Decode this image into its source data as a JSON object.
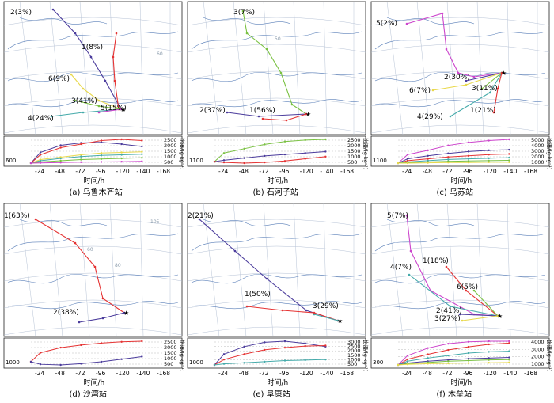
{
  "page": {
    "xlabel": "时间/h",
    "ylabel": "比湿/(g·kg⁻¹)"
  },
  "chart_data": [
    {
      "type": "line",
      "caption": "(a) 乌鲁木齐站",
      "map_labels": [
        "2(3%)",
        "1(8%)",
        "6(9%)",
        "3(41%)",
        "5(15%)",
        "4(24%)"
      ],
      "map_grid_labels": [
        "60"
      ],
      "humidity": {
        "x_ticks": [
          "-24",
          "-48",
          "-72",
          "-96",
          "-120",
          "-140",
          "-168"
        ],
        "y_left": "600",
        "y_right_ticks": [
          "2500",
          "2000",
          "1500",
          "1000",
          "500"
        ],
        "series": [
          {
            "color": "#4b3c9c",
            "values": [
              600,
              1500,
              2100,
              2300,
              2350,
              2200,
              2000
            ]
          },
          {
            "color": "#e53333",
            "values": [
              600,
              1300,
              1900,
              2200,
              2500,
              2600,
              2500
            ]
          },
          {
            "color": "#e8d84a",
            "values": [
              600,
              900,
              1100,
              1300,
              1450,
              1500,
              1550
            ]
          },
          {
            "color": "#44aaaa",
            "values": [
              600,
              800,
              1000,
              1150,
              1250,
              1300,
              1350
            ]
          },
          {
            "color": "#7ac142",
            "values": [
              600,
              700,
              800,
              900,
              950,
              1000,
              1050
            ]
          },
          {
            "color": "#cc44cc",
            "values": [
              600,
              620,
              650,
              680,
              700,
              720,
              750
            ]
          }
        ]
      }
    },
    {
      "type": "line",
      "caption": "(b) 石河子站",
      "map_labels": [
        "3(7%)",
        "2(37%)",
        "1(56%)"
      ],
      "map_grid_labels": [
        "50"
      ],
      "humidity": {
        "x_ticks": [
          "-24",
          "-48",
          "-72",
          "-96",
          "-120",
          "-140",
          "-168"
        ],
        "y_left": "1100",
        "y_right_ticks": [
          "2500",
          "2000",
          "1500",
          "1000",
          "500"
        ],
        "series": [
          {
            "color": "#7ac142",
            "values": [
              1100,
              1700,
              2000,
              2300,
              2500,
              2600,
              2650
            ]
          },
          {
            "color": "#4b3c9c",
            "values": [
              1100,
              1200,
              1350,
              1500,
              1600,
              1700,
              1800
            ]
          },
          {
            "color": "#e53333",
            "values": [
              1100,
              1050,
              1000,
              1050,
              1150,
              1300,
              1450
            ]
          }
        ]
      }
    },
    {
      "type": "line",
      "caption": "(c) 乌苏站",
      "map_labels": [
        "5(2%)",
        "2(30%)",
        "6(7%)",
        "3(11%)",
        "4(29%)",
        "1(21%)"
      ],
      "map_grid_labels": [],
      "humidity": {
        "x_ticks": [
          "-24",
          "-48",
          "-72",
          "-96",
          "-120",
          "-140",
          "-168"
        ],
        "y_left": "1100",
        "y_right_ticks": [
          "5000",
          "4000",
          "3000",
          "2000",
          "1000"
        ],
        "series": [
          {
            "color": "#cc44cc",
            "values": [
              1100,
              2500,
              3200,
              4000,
              4500,
              4800,
              5000
            ]
          },
          {
            "color": "#4b3c9c",
            "values": [
              1100,
              1800,
              2300,
              2700,
              3000,
              3200,
              3300
            ]
          },
          {
            "color": "#e53333",
            "values": [
              1100,
              1500,
              1800,
              2100,
              2300,
              2500,
              2600
            ]
          },
          {
            "color": "#44aaaa",
            "values": [
              1100,
              1300,
              1500,
              1700,
              1800,
              1900,
              2000
            ]
          },
          {
            "color": "#7ac142",
            "values": [
              1100,
              1200,
              1300,
              1400,
              1450,
              1500,
              1550
            ]
          },
          {
            "color": "#e8d84a",
            "values": [
              1100,
              1100,
              1150,
              1200,
              1200,
              1250,
              1250
            ]
          }
        ]
      }
    },
    {
      "type": "line",
      "caption": "(d) 沙湾站",
      "map_labels": [
        "1(63%)",
        "2(38%)"
      ],
      "map_grid_labels": [
        "105",
        "80",
        "60"
      ],
      "humidity": {
        "x_ticks": [
          "-24",
          "-48",
          "-72",
          "-96",
          "-120",
          "-140",
          "-168"
        ],
        "y_left": "1000",
        "y_right_ticks": [
          "2500",
          "2000",
          "1500",
          "1000",
          "500"
        ],
        "series": [
          {
            "color": "#e53333",
            "values": [
              1000,
              1700,
              2100,
              2300,
              2450,
              2550,
              2600
            ]
          },
          {
            "color": "#4b3c9c",
            "values": [
              1000,
              800,
              750,
              850,
              1000,
              1200,
              1400
            ]
          }
        ]
      }
    },
    {
      "type": "line",
      "caption": "(e) 阜康站",
      "map_labels": [
        "2(21%)",
        "1(50%)",
        "3(29%)"
      ],
      "map_grid_labels": [],
      "humidity": {
        "x_ticks": [
          "-24",
          "-48",
          "-72",
          "-96",
          "-120",
          "-140",
          "-168"
        ],
        "y_left": "1000",
        "y_right_ticks": [
          "3000",
          "2500",
          "2000",
          "1500",
          "1000",
          "500"
        ],
        "series": [
          {
            "color": "#4b3c9c",
            "values": [
              1000,
              2000,
              2700,
              3100,
              3200,
              3000,
              2700
            ]
          },
          {
            "color": "#e53333",
            "values": [
              1000,
              1500,
              2000,
              2400,
              2600,
              2750,
              2800
            ]
          },
          {
            "color": "#44aaaa",
            "values": [
              1000,
              1100,
              1200,
              1300,
              1400,
              1450,
              1500
            ]
          }
        ]
      }
    },
    {
      "type": "line",
      "caption": "(f) 木垒站",
      "map_labels": [
        "5(7%)",
        "1(18%)",
        "4(7%)",
        "6(5%)",
        "2(41%)",
        "3(27%)"
      ],
      "map_grid_labels": [],
      "humidity": {
        "x_ticks": [
          "-24",
          "-48",
          "-72",
          "-96",
          "-120",
          "-140",
          "-168"
        ],
        "y_left": "300",
        "y_right_ticks": [
          "4000",
          "3000",
          "2000",
          "1000"
        ],
        "series": [
          {
            "color": "#cc44cc",
            "values": [
              300,
              1800,
              3000,
              3700,
              4000,
              4100,
              4100
            ]
          },
          {
            "color": "#e53333",
            "values": [
              300,
              1200,
              2000,
              2700,
              3200,
              3600,
              3800
            ]
          },
          {
            "color": "#44aaaa",
            "values": [
              300,
              900,
              1400,
              1800,
              2200,
              2400,
              2500
            ]
          },
          {
            "color": "#4b3c9c",
            "values": [
              300,
              600,
              900,
              1100,
              1300,
              1400,
              1500
            ]
          },
          {
            "color": "#7ac142",
            "values": [
              300,
              500,
              700,
              900,
              1000,
              1100,
              1150
            ]
          },
          {
            "color": "#e8d84a",
            "values": [
              300,
              400,
              500,
              550,
              600,
              650,
              700
            ]
          }
        ]
      }
    }
  ]
}
